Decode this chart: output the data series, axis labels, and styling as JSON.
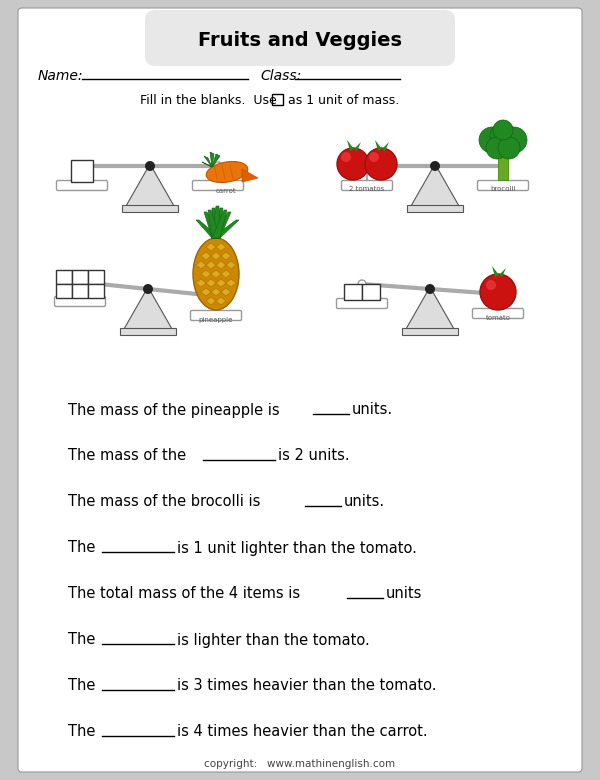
{
  "title": "Fruits and Veggies",
  "title_bg": "#e8e8e8",
  "bg_color": "#ffffff",
  "outer_bg": "#c8c8c8",
  "name_label": "Name:",
  "class_label": "Class:",
  "instruction": "Fill in the blanks.  Use",
  "instruction2": " as 1 unit of mass.",
  "questions": [
    {
      "pre": "The mass of the pineapple is ",
      "blank": "_____",
      "post": " units."
    },
    {
      "pre": "The mass of the ",
      "blank": "__________",
      "post": " is 2 units."
    },
    {
      "pre": "The mass of the brocolli is ",
      "blank": "_____",
      "post": " units."
    },
    {
      "pre": "The ",
      "blank": "__________",
      "post": " is 1 unit lighter than the tomato."
    },
    {
      "pre": "The total mass of the 4 items is ",
      "blank": "_____",
      "post": " units"
    },
    {
      "pre": "The ",
      "blank": "__________",
      "post": " is lighter than the tomato."
    },
    {
      "pre": "The ",
      "blank": "__________",
      "post": " is 3 times heavier than the tomato."
    },
    {
      "pre": "The ",
      "blank": "__________",
      "post": " is 4 times heavier than the carrot."
    }
  ],
  "copyright": "copyright:   www.mathinenglish.com"
}
